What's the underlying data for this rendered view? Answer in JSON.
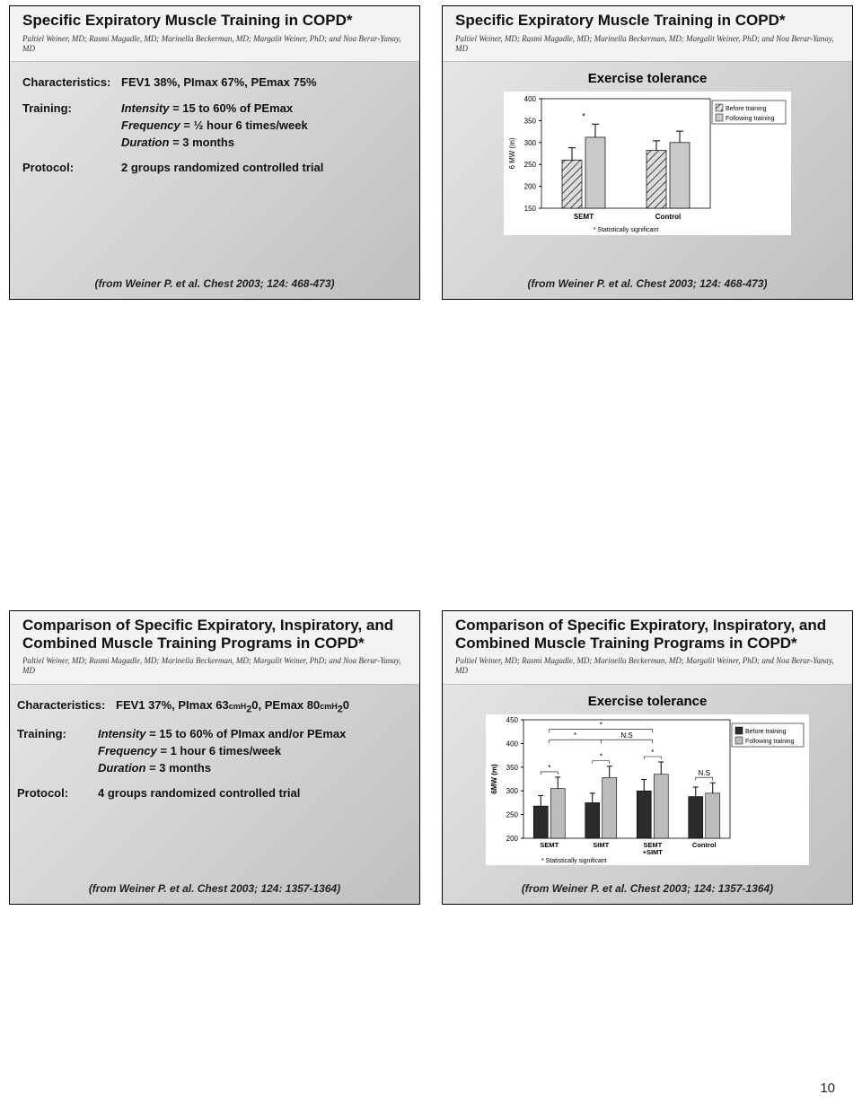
{
  "page_number": "10",
  "panels": {
    "p1": {
      "title": "Specific Expiratory Muscle Training in COPD*",
      "authors": "Paltiel Weiner, MD; Rasmi Magadle, MD; Marinella Beckerman, MD; Margalit Weiner, PhD; and Noa Berar-Yanay, MD",
      "char_label": "Characteristics:",
      "char_val": "FEV1 38%, PImax 67%, PEmax 75%",
      "train_label": "Training:",
      "train_l1a": "Intensity",
      "train_l1b": " = 15 to 60% of PEmax",
      "train_l2a": "Frequency",
      "train_l2b": " = ½ hour 6 times/week",
      "train_l3a": "Duration",
      "train_l3b": " = 3 months",
      "proto_label": "Protocol:",
      "proto_val": "2 groups randomized controlled trial",
      "citation": "(from Weiner P. et al.  Chest 2003; 124: 468-473)"
    },
    "p2": {
      "title": "Specific Expiratory Muscle Training in COPD*",
      "authors": "Paltiel Weiner, MD; Rasmi Magadle, MD; Marinella Beckerman, MD; Margalit Weiner, PhD; and Noa Berar-Yanay, MD",
      "subhead": "Exercise tolerance",
      "citation": "(from Weiner P. et al.  Chest 2003; 124: 468-473)",
      "chart": {
        "ylabel": "6 MW (m)",
        "ylim": [
          150,
          400
        ],
        "ytick_step": 50,
        "categories": [
          "SEMT",
          "Control"
        ],
        "series": [
          {
            "name": "Before training",
            "color": "#555555",
            "pattern": "hatch",
            "values": [
              260,
              282
            ],
            "err": [
              28,
              22
            ]
          },
          {
            "name": "Following training",
            "color": "#c9c9c9",
            "pattern": "solid",
            "values": [
              312,
              300
            ],
            "err": [
              30,
              26
            ]
          }
        ],
        "footnote": "*  Statistically significant",
        "sig_marker_on": 0
      }
    },
    "p3": {
      "title": "Comparison of Specific Expiratory, Inspiratory, and Combined Muscle Training Programs in COPD*",
      "authors": "Paltiel Weiner, MD; Rasmi Magadle, MD; Marinella Beckerman, MD; Margalit Weiner, PhD; and Noa Berar-Yanay, MD",
      "char_label": "Characteristics:",
      "char_val_a": "FEV1 37%, PImax 63",
      "char_val_b": "cmH",
      "char_val_c": "0, PEmax 80",
      "char_val_d": "cmH",
      "char_val_e": "0",
      "train_label": "Training:",
      "train_l1a": "Intensity",
      "train_l1b": " = 15 to 60% of PImax and/or PEmax",
      "train_l2a": "Frequency",
      "train_l2b": " = 1 hour 6 times/week",
      "train_l3a": "Duration",
      "train_l3b": " = 3 months",
      "proto_label": "Protocol:",
      "proto_val": "4 groups randomized controlled trial",
      "citation": "(from Weiner P. et al.  Chest 2003; 124: 1357-1364)"
    },
    "p4": {
      "title": "Comparison of Specific Expiratory, Inspiratory, and Combined Muscle Training Programs in COPD*",
      "authors": "Paltiel Weiner, MD; Rasmi Magadle, MD; Marinella Beckerman, MD; Margalit Weiner, PhD; and Noa Berar-Yanay, MD",
      "subhead": "Exercise tolerance",
      "citation": "(from Weiner P. et al.  Chest 2003; 124: 1357-1364)",
      "chart": {
        "ylabel": "6MW (m)",
        "ylim": [
          200,
          450
        ],
        "ytick_step": 50,
        "categories": [
          "SEMT",
          "SIMT",
          "SEMT\n+SIMT",
          "Control"
        ],
        "series": [
          {
            "name": "Before training",
            "color": "#2b2b2b",
            "values": [
              268,
              275,
              300,
              288
            ],
            "err": [
              22,
              20,
              24,
              20
            ]
          },
          {
            "name": "Following training",
            "color": "#bcbcbc",
            "values": [
              305,
              328,
              335,
              295
            ],
            "err": [
              24,
              24,
              26,
              22
            ]
          }
        ],
        "footnote": "*  Statistically significant",
        "sig_pairs": [
          [
            0,
            "*"
          ],
          [
            1,
            "*"
          ],
          [
            2,
            "*"
          ],
          [
            3,
            "N.S"
          ]
        ],
        "top_comparisons": [
          {
            "from": 0,
            "to": 1,
            "label": "*",
            "y": 408
          },
          {
            "from": 1,
            "to": 2,
            "label": "N.S",
            "y": 408
          },
          {
            "from": 0,
            "to": 2,
            "label": "*",
            "y": 430
          }
        ]
      }
    }
  }
}
